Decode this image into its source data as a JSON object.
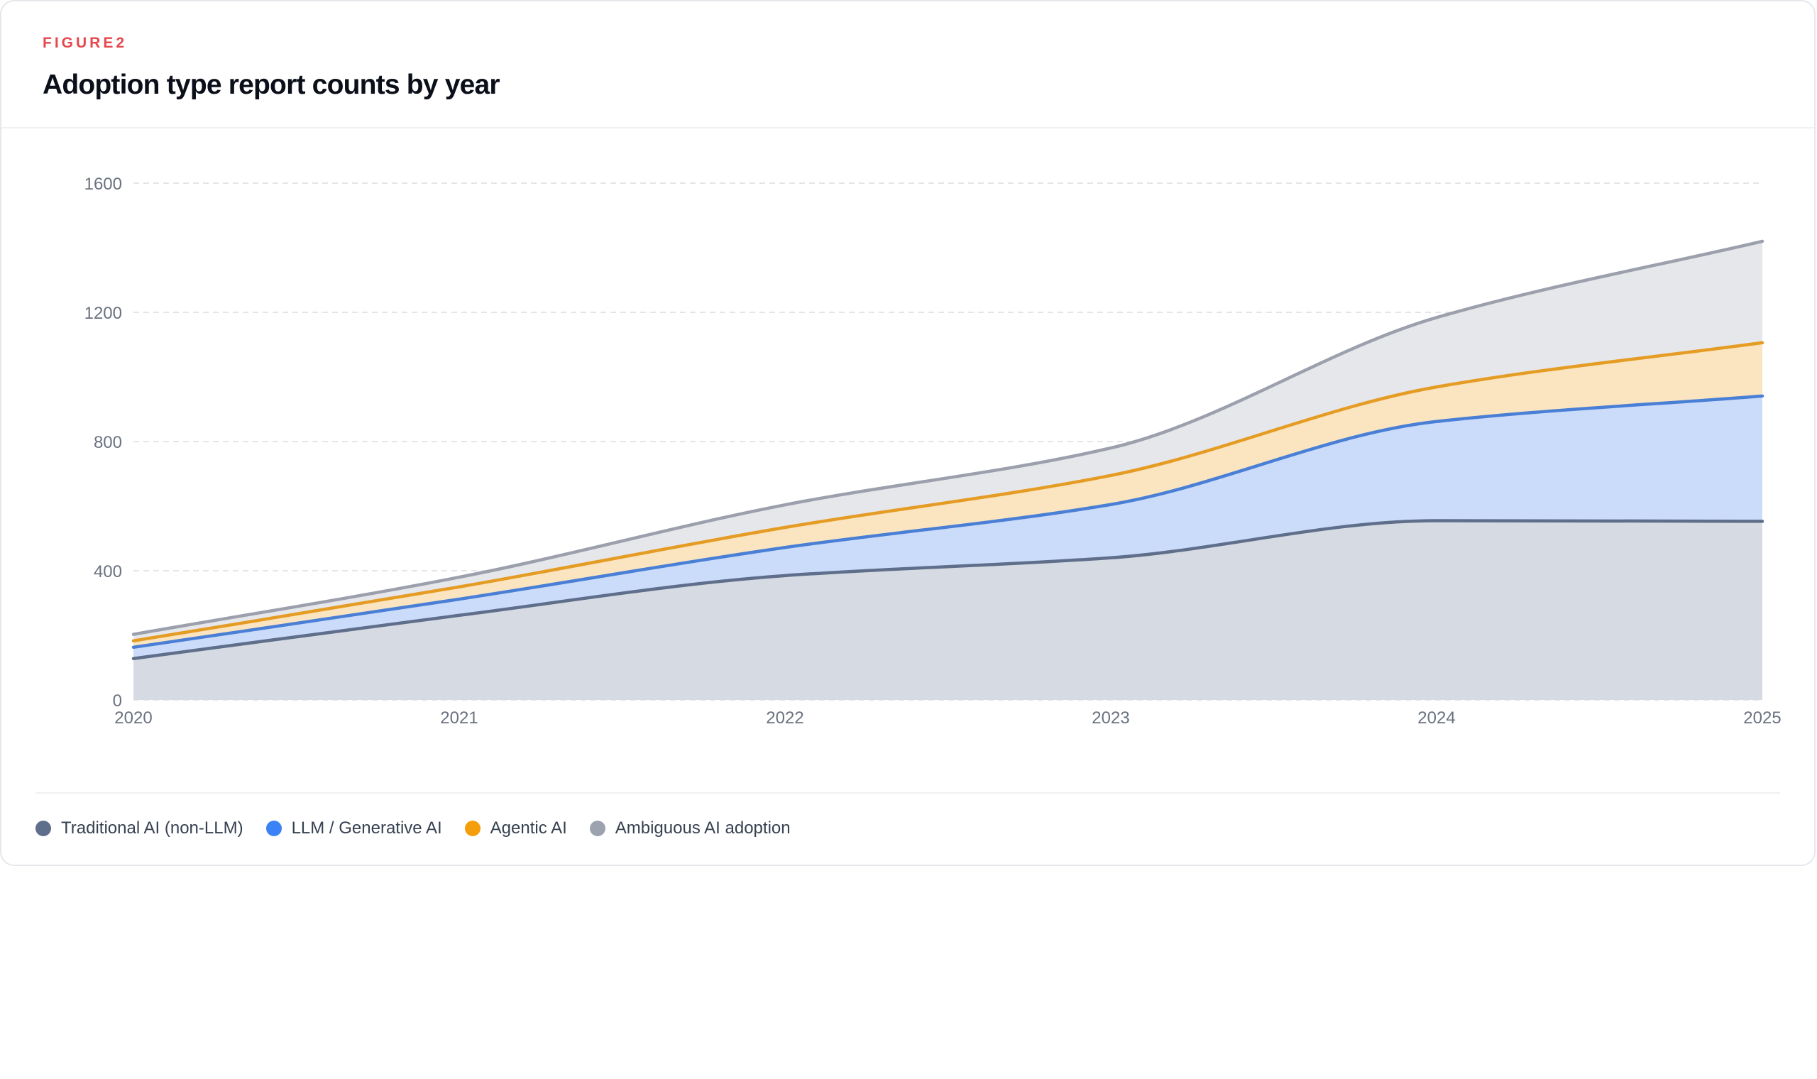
{
  "figure": {
    "eyebrow": "FIGURE2",
    "title": "Adoption type report counts by year"
  },
  "chart_data": {
    "type": "area",
    "stacked": true,
    "x": [
      2020,
      2021,
      2022,
      2023,
      2024,
      2025
    ],
    "xlabel": "",
    "ylabel": "",
    "ylim": [
      0,
      1600
    ],
    "yticks": [
      0,
      400,
      800,
      1200,
      1600
    ],
    "grid": true,
    "legend_position": "bottom-left",
    "series": [
      {
        "name": "Traditional AI (non-LLM)",
        "color": "#5f6e8a",
        "fill": "#d6dbe3",
        "values": [
          128,
          262,
          385,
          440,
          555,
          553
        ]
      },
      {
        "name": "LLM / Generative AI",
        "color": "#4a7fd6",
        "fill": "#cbdcfb",
        "values": [
          35,
          50,
          87,
          165,
          307,
          388
        ]
      },
      {
        "name": "Agentic AI",
        "color": "#e59c24",
        "fill": "#fbe5c0",
        "values": [
          20,
          38,
          62,
          90,
          107,
          165
        ]
      },
      {
        "name": "Ambiguous AI adoption",
        "color": "#9ca0ad",
        "fill": "#e6e7ea",
        "values": [
          20,
          30,
          70,
          85,
          215,
          314
        ]
      }
    ]
  },
  "legend": {
    "items": [
      {
        "label": "Traditional AI (non-LLM)",
        "color": "#5f6e8a"
      },
      {
        "label": "LLM / Generative AI",
        "color": "#3b82f6"
      },
      {
        "label": "Agentic AI",
        "color": "#f59e0b"
      },
      {
        "label": "Ambiguous AI adoption",
        "color": "#9ca3af"
      }
    ]
  }
}
